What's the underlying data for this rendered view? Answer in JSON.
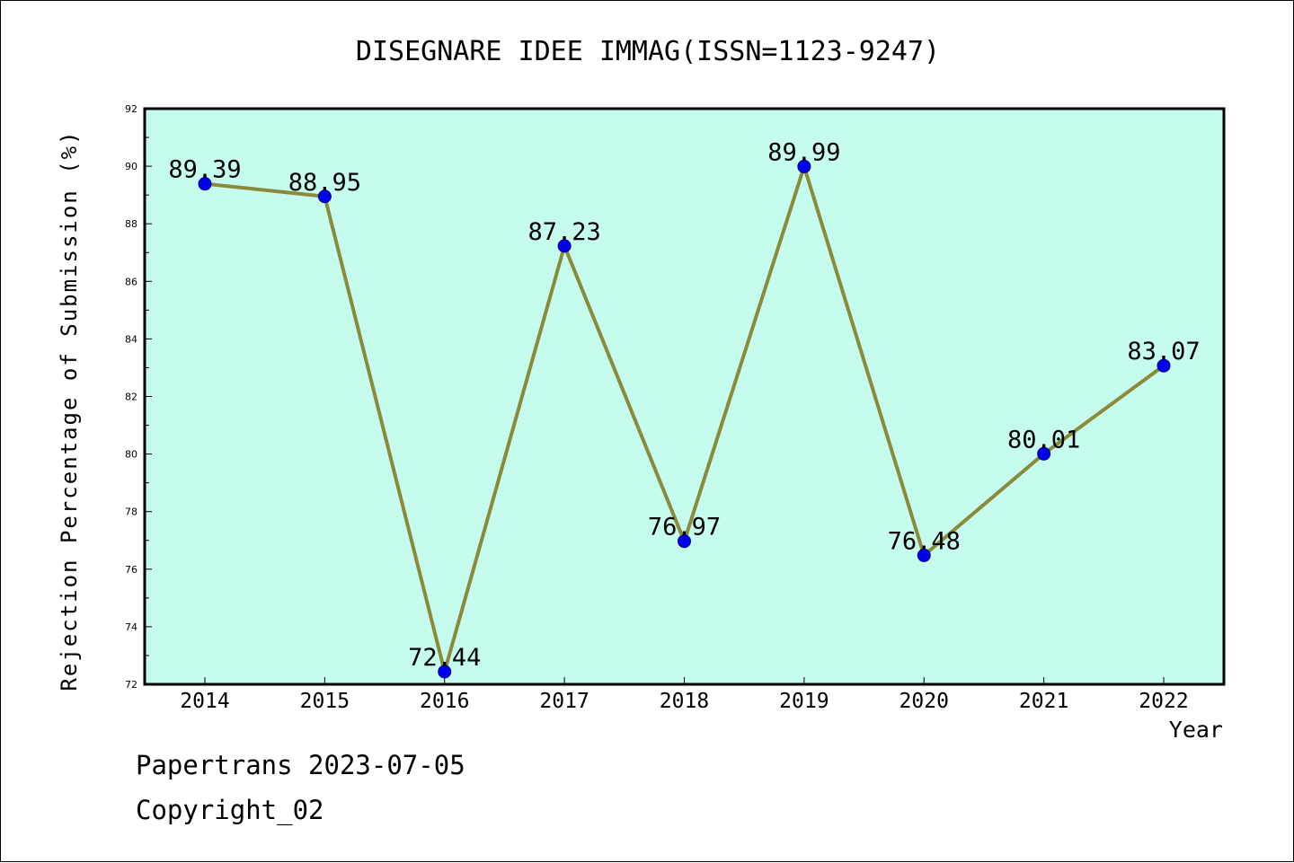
{
  "chart_data": {
    "type": "line",
    "title": "DISEGNARE IDEE IMMAG(ISSN=1123-9247)",
    "xlabel": "Year",
    "ylabel": "Rejection Percentage of Submission (%)",
    "categories": [
      "2014",
      "2015",
      "2016",
      "2017",
      "2018",
      "2019",
      "2020",
      "2021",
      "2022"
    ],
    "series": [
      {
        "values": [
          89.39,
          88.95,
          72.44,
          87.23,
          76.97,
          89.99,
          76.48,
          80.01,
          83.07
        ],
        "labels": [
          "89.39",
          "88.95",
          "72.44",
          "87.23",
          "76.97",
          "89.99",
          "76.48",
          "80.01",
          "83.07"
        ]
      }
    ],
    "ylim": [
      72,
      92
    ],
    "yticks": [
      "72",
      "74",
      "76",
      "78",
      "80",
      "82",
      "84",
      "86",
      "88",
      "90",
      "92"
    ],
    "grid": false,
    "colors": {
      "plot_background": "#c6fcee",
      "line": "#8b8a3a",
      "marker": "#0000ee",
      "marker_edge": "#000080"
    }
  },
  "footer": {
    "line1": "Papertrans 2023-07-05",
    "line2": "Copyright_02"
  }
}
